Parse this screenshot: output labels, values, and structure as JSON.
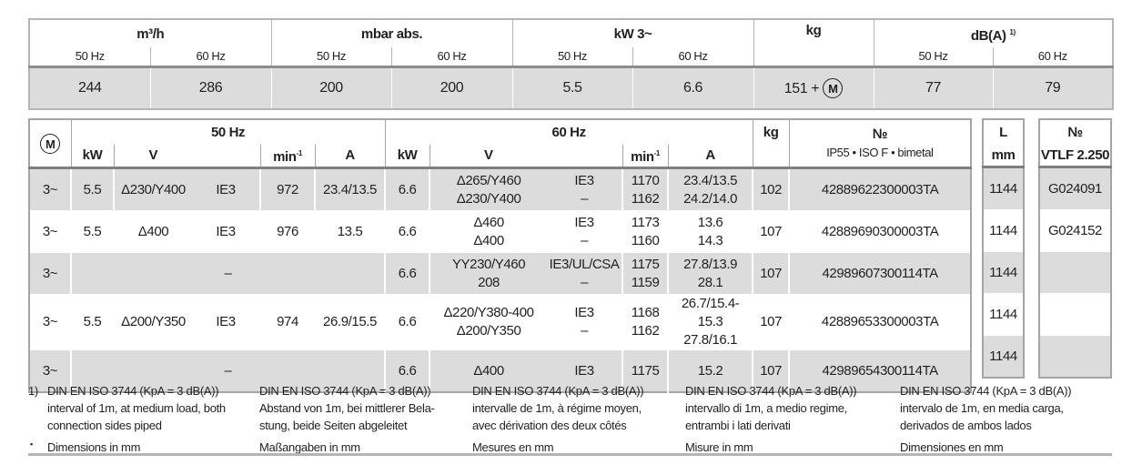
{
  "summary": {
    "groups": [
      {
        "label": "m³/h",
        "sub": [
          "50 Hz",
          "60 Hz"
        ],
        "values": [
          "244",
          "286"
        ]
      },
      {
        "label": "mbar abs.",
        "sub": [
          "50 Hz",
          "60 Hz"
        ],
        "values": [
          "200",
          "200"
        ]
      },
      {
        "label": "kW 3~",
        "sub": [
          "50 Hz",
          "60 Hz"
        ],
        "values": [
          "5.5",
          "6.6"
        ]
      },
      {
        "label": "kg",
        "value": "151 +",
        "symbol": "M"
      },
      {
        "label": "dB(A)",
        "footnote_mark": "1)",
        "sub": [
          "50 Hz",
          "60 Hz"
        ],
        "values": [
          "77",
          "79"
        ]
      }
    ]
  },
  "motor_table": {
    "symbol": "M",
    "hz50": "50 Hz",
    "hz60": "60 Hz",
    "cols": {
      "kw": "kW",
      "v": "V",
      "min": "min",
      "min_exp": "-1",
      "a": "A",
      "kg": "kg",
      "no": "№",
      "no_sub": "IP55 • ISO F • bimetal"
    },
    "rows": [
      {
        "phase": "3~",
        "kw50": "5.5",
        "v50": "Δ230/Y400",
        "ie50": "IE3",
        "min50": "972",
        "a50": "23.4/13.5",
        "kw60": "6.6",
        "v60": [
          "Δ265/Y460",
          "Δ230/Y400"
        ],
        "ie60": [
          "IE3",
          "–"
        ],
        "min60": [
          "1170",
          "1162"
        ],
        "a60": [
          "23.4/13.5",
          "24.2/14.0"
        ],
        "kg": "102",
        "no": "42889622300003TA",
        "shade": true
      },
      {
        "phase": "3~",
        "kw50": "5.5",
        "v50": "Δ400",
        "ie50": "IE3",
        "min50": "976",
        "a50": "13.5",
        "kw60": "6.6",
        "v60": [
          "Δ460",
          "Δ400"
        ],
        "ie60": [
          "IE3",
          "–"
        ],
        "min60": [
          "1173",
          "1160"
        ],
        "a60": [
          "13.6",
          "14.3"
        ],
        "kg": "107",
        "no": "42889690300003TA",
        "shade": false
      },
      {
        "phase": "3~",
        "none50": "–",
        "kw60": "6.6",
        "v60": [
          "YY230/Y460",
          "208"
        ],
        "ie60": [
          "IE3/UL/CSA",
          "–"
        ],
        "min60": [
          "1175",
          "1159"
        ],
        "a60": [
          "27.8/13.9",
          "28.1"
        ],
        "kg": "107",
        "no": "42989607300114TA",
        "shade": true
      },
      {
        "phase": "3~",
        "kw50": "5.5",
        "v50": "Δ200/Y350",
        "ie50": "IE3",
        "min50": "974",
        "a50": "26.9/15.5",
        "kw60": "6.6",
        "v60": [
          "Δ220/Y380-400",
          "Δ200/Y350"
        ],
        "ie60": [
          "IE3",
          "–"
        ],
        "min60": [
          "1168",
          "1162"
        ],
        "a60": [
          "26.7/15.4-15.3",
          "27.8/16.1"
        ],
        "kg": "107",
        "no": "42889653300003TA",
        "shade": false
      },
      {
        "phase": "3~",
        "none50": "–",
        "kw60": "6.6",
        "v60": [
          "Δ400"
        ],
        "ie60": [
          "IE3"
        ],
        "min60": [
          "1175"
        ],
        "a60": [
          "15.2"
        ],
        "kg": "107",
        "no": "42989654300114TA",
        "shade": true
      }
    ]
  },
  "length_table": {
    "label": "L",
    "unit": "mm",
    "values": [
      "1144",
      "1144",
      "1144",
      "1144",
      "1144"
    ]
  },
  "filter_table": {
    "label": "№",
    "sub": "VTLF 2.250",
    "values": [
      "G024091",
      "G024152",
      "",
      "",
      ""
    ]
  },
  "footnotes": {
    "marker": "1)",
    "bullet": "▪",
    "columns": [
      {
        "lines": [
          "DIN EN ISO 3744 (KpA = 3 dB(A))",
          "interval of 1m, at medium load, both",
          "connection sides piped"
        ],
        "dims": "Dimensions in mm"
      },
      {
        "lines": [
          "DIN EN ISO 3744 (KpA = 3 dB(A))",
          "Abstand von 1m, bei mittlerer Bela-",
          "stung, beide Seiten abgeleitet"
        ],
        "dims": "Maßangaben in mm"
      },
      {
        "lines": [
          "DIN EN ISO 3744 (KpA = 3 dB(A))",
          "intervalle de 1m, à régime moyen,",
          "avec dérivation des deux côtés"
        ],
        "dims": "Mesures en mm"
      },
      {
        "lines": [
          "DIN EN ISO 3744 (KpA = 3 dB(A))",
          "intervallo di 1m, a medio regime,",
          "entrambi i lati derivati"
        ],
        "dims": "Misure in mm"
      },
      {
        "lines": [
          "DIN EN ISO 3744 (KpA = 3 dB(A))",
          "intervalo de 1m, en media carga,",
          "derivados de ambos lados"
        ],
        "dims": "Dimensiones en mm"
      }
    ]
  }
}
